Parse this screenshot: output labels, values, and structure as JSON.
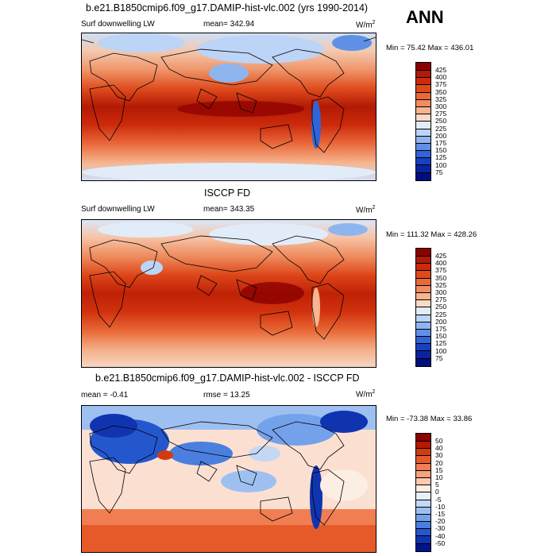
{
  "ann_label": "ANN",
  "panels": [
    {
      "title": "b.e21.B1850cmip6.f09_g17.DAMIP-hist-vlc.002 (yrs 1990-2014)",
      "variable": "Surf downwelling LW",
      "stat": "mean= 342.94",
      "units": "W/m",
      "units_exp": "2",
      "minmax": "Min =  75.42 Max = 436.01",
      "levels": [
        "425",
        "400",
        "375",
        "350",
        "325",
        "300",
        "275",
        "250",
        "225",
        "200",
        "175",
        "150",
        "125",
        "100",
        "75"
      ],
      "colors": [
        "#8b0000",
        "#b21a05",
        "#cc2a0a",
        "#de4a1c",
        "#e9683a",
        "#f08c62",
        "#f6b48f",
        "#fbdbc8",
        "#e2ecf9",
        "#bcd4f5",
        "#8fb5ef",
        "#5f90e6",
        "#3164d8",
        "#1740c2",
        "#0a24a0",
        "#000f7e"
      ]
    },
    {
      "title": "ISCCP FD",
      "variable": "Surf downwelling LW",
      "stat": "mean= 343.35",
      "units": "W/m",
      "units_exp": "2",
      "minmax": "Min = 111.32 Max = 428.26",
      "levels": [
        "425",
        "400",
        "375",
        "350",
        "325",
        "300",
        "275",
        "250",
        "225",
        "200",
        "175",
        "150",
        "125",
        "100",
        "75"
      ],
      "colors": [
        "#8b0000",
        "#b21a05",
        "#cc2a0a",
        "#de4a1c",
        "#e9683a",
        "#f08c62",
        "#f6b48f",
        "#fbdbc8",
        "#e2ecf9",
        "#bcd4f5",
        "#8fb5ef",
        "#5f90e6",
        "#3164d8",
        "#1740c2",
        "#0a24a0",
        "#000f7e"
      ]
    },
    {
      "title": "b.e21.B1850cmip6.f09_g17.DAMIP-hist-vlc.002 - ISCCP FD",
      "stat_left": "mean =  -0.41",
      "stat": "rmse =  13.25",
      "units": "W/m",
      "units_exp": "2",
      "minmax": "Min = -73.38 Max =  33.86",
      "levels": [
        "50",
        "40",
        "30",
        "20",
        "15",
        "10",
        "5",
        "0",
        "-5",
        "-10",
        "-15",
        "-20",
        "-30",
        "-40",
        "-50"
      ],
      "colors": [
        "#8b0000",
        "#b21a05",
        "#d23a10",
        "#e65a2a",
        "#f07e52",
        "#f6a47e",
        "#fac9b0",
        "#fdeee4",
        "#e8f0fb",
        "#c4d8f6",
        "#9ec0f1",
        "#74a2ea",
        "#4a7fe0",
        "#2457ce",
        "#1034b0",
        "#00148a"
      ]
    }
  ]
}
